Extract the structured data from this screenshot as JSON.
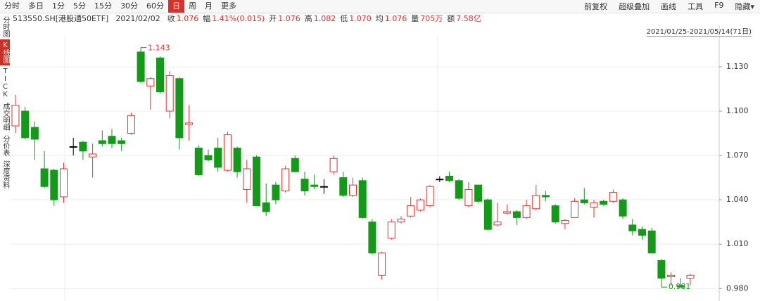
{
  "toolbar": {
    "tabs": [
      "分时",
      "多日",
      "1分",
      "5分",
      "15分",
      "30分",
      "60分",
      "日",
      "周",
      "月",
      "更多"
    ],
    "tools": [
      "前复权",
      "超级叠加",
      "画线",
      "工具",
      "F9",
      "隐藏▾"
    ]
  },
  "info": {
    "code": "513550.SH[港股通50ETF]",
    "date": "2021/02/02",
    "items": [
      {
        "label": "收",
        "value": "1.076"
      },
      {
        "label": "幅",
        "value": "1.41%(0.015)"
      },
      {
        "label": "开",
        "value": "1.076"
      },
      {
        "label": "高",
        "value": "1.082"
      },
      {
        "label": "低",
        "value": "1.070"
      },
      {
        "label": "均",
        "value": "1.076"
      },
      {
        "label": "量",
        "value": "705万"
      },
      {
        "label": "额",
        "value": "7.58亿"
      }
    ],
    "range": "2021/01/25-2021/05/14(71日)"
  },
  "sidebar": [
    "分时图",
    "K线图",
    "TICK",
    "成交明细",
    "分价表",
    "深度资料"
  ],
  "chart_data": {
    "type": "candlestick",
    "up_color": "#e8312f",
    "down_color": "#129a18",
    "flat_color": "#000000",
    "grid": true,
    "open": [
      1.09,
      1.1,
      1.089,
      1.061,
      1.06,
      1.042,
      1.076,
      1.079,
      1.069,
      1.08,
      1.083,
      1.08,
      1.085,
      1.14,
      1.117,
      1.136,
      1.1,
      1.122,
      1.091,
      1.075,
      1.07,
      1.075,
      1.06,
      1.075,
      1.047,
      1.069,
      1.038,
      1.05,
      1.046,
      1.068,
      1.054,
      1.05,
      1.049,
      1.059,
      1.055,
      1.043,
      1.053,
      1.025,
      0.989,
      1.014,
      1.025,
      1.029,
      1.033,
      1.036,
      1.054,
      1.056,
      1.053,
      1.036,
      1.05,
      1.04,
      1.023,
      1.031,
      1.032,
      1.028,
      1.034,
      1.043,
      1.036,
      1.024,
      1.028,
      1.04,
      1.035,
      1.039,
      1.039,
      1.04,
      1.023,
      1.02,
      1.019,
      0.999,
      0.988,
      0.982,
      0.987
    ],
    "high": [
      1.111,
      1.103,
      1.093,
      1.073,
      1.061,
      1.065,
      1.082,
      1.08,
      1.078,
      1.087,
      1.088,
      1.082,
      1.099,
      1.143,
      1.123,
      1.137,
      1.127,
      1.123,
      1.104,
      1.077,
      1.074,
      1.082,
      1.086,
      1.076,
      1.067,
      1.07,
      1.051,
      1.052,
      1.063,
      1.07,
      1.059,
      1.057,
      1.054,
      1.07,
      1.059,
      1.055,
      1.055,
      1.027,
      1.005,
      1.027,
      1.029,
      1.042,
      1.041,
      1.05,
      1.056,
      1.059,
      1.054,
      1.052,
      1.05,
      1.041,
      1.038,
      1.037,
      1.033,
      1.04,
      1.05,
      1.046,
      1.037,
      1.027,
      1.041,
      1.048,
      1.04,
      1.04,
      1.047,
      1.041,
      1.027,
      1.022,
      1.021,
      1.0,
      0.991,
      0.987,
      0.99
    ],
    "low": [
      1.085,
      1.081,
      1.067,
      1.048,
      1.036,
      1.038,
      1.07,
      1.067,
      1.055,
      1.076,
      1.075,
      1.073,
      1.084,
      1.119,
      1.101,
      1.112,
      1.095,
      1.074,
      1.08,
      1.056,
      1.066,
      1.059,
      1.059,
      1.055,
      1.038,
      1.036,
      1.029,
      1.037,
      1.045,
      1.059,
      1.043,
      1.047,
      1.044,
      1.057,
      1.042,
      1.042,
      1.027,
      1.003,
      0.986,
      1.013,
      1.024,
      1.028,
      1.032,
      1.035,
      1.052,
      1.052,
      1.04,
      1.035,
      1.038,
      1.019,
      1.022,
      1.03,
      1.023,
      1.027,
      1.033,
      1.039,
      1.024,
      1.02,
      1.028,
      1.037,
      1.028,
      1.036,
      1.038,
      1.027,
      1.016,
      1.013,
      1.004,
      0.981,
      0.982,
      0.981,
      0.982
    ],
    "close": [
      1.104,
      1.082,
      1.081,
      1.049,
      1.04,
      1.061,
      1.076,
      1.073,
      1.071,
      1.078,
      1.078,
      1.078,
      1.097,
      1.12,
      1.122,
      1.113,
      1.124,
      1.082,
      1.092,
      1.057,
      1.067,
      1.062,
      1.084,
      1.059,
      1.061,
      1.036,
      1.032,
      1.04,
      1.061,
      1.059,
      1.046,
      1.049,
      1.049,
      1.068,
      1.043,
      1.05,
      1.028,
      1.004,
      1.004,
      1.025,
      1.027,
      1.036,
      1.04,
      1.049,
      1.054,
      1.053,
      1.041,
      1.047,
      1.039,
      1.02,
      1.025,
      1.032,
      1.028,
      1.036,
      1.043,
      1.042,
      1.025,
      1.026,
      1.039,
      1.038,
      1.038,
      1.037,
      1.045,
      1.029,
      1.019,
      1.016,
      1.004,
      0.987,
      0.989,
      0.981,
      0.989
    ],
    "ylim": [
      0.973,
      1.149
    ],
    "yticks": [
      {
        "value": 0.98,
        "label": "0.980"
      },
      {
        "value": 1.01,
        "label": "1.010"
      },
      {
        "value": 1.04,
        "label": "1.040"
      },
      {
        "value": 1.07,
        "label": "1.070"
      },
      {
        "value": 1.1,
        "label": "1.100"
      },
      {
        "value": 1.13,
        "label": "1.130"
      }
    ]
  }
}
